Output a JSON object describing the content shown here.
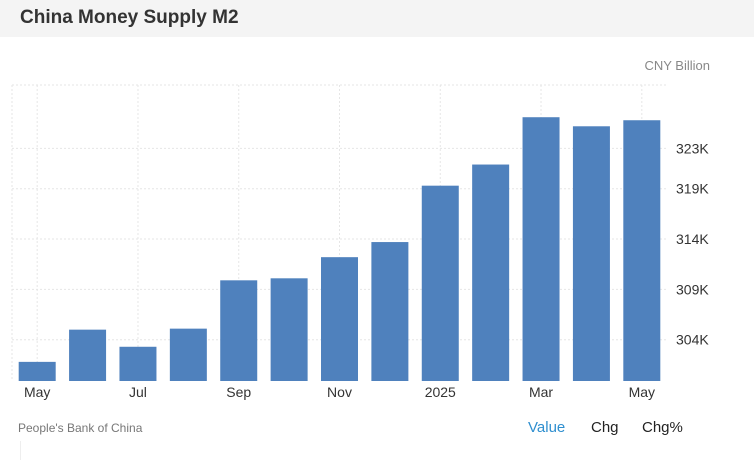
{
  "title": "China Money Supply M2",
  "unit_label": "CNY Billion",
  "source": "People's Bank of China",
  "tabs": [
    {
      "label": "Value",
      "active": true
    },
    {
      "label": "Chg",
      "active": false
    },
    {
      "label": "Chg%",
      "active": false
    }
  ],
  "colors": {
    "bar": "#4f81bd",
    "accent": "#2f8fcf"
  },
  "chart_data": {
    "type": "bar",
    "categories": [
      "May 2024",
      "Jun 2024",
      "Jul 2024",
      "Aug 2024",
      "Sep 2024",
      "Oct 2024",
      "Nov 2024",
      "Dec 2024",
      "Jan 2025",
      "Feb 2025",
      "Mar 2025",
      "Apr 2025",
      "May 2025"
    ],
    "x_tick_labels": [
      "May",
      "",
      "Jul",
      "",
      "Sep",
      "",
      "Nov",
      "",
      "2025",
      "",
      "Mar",
      "",
      "May"
    ],
    "values": [
      301.8,
      305.0,
      303.3,
      305.1,
      309.9,
      310.1,
      312.2,
      313.7,
      319.3,
      321.4,
      326.1,
      325.2,
      325.8
    ],
    "y_ticks": [
      304,
      309,
      314,
      319,
      323
    ],
    "y_tick_labels": [
      "304K",
      "309K",
      "314K",
      "319K",
      "323K"
    ],
    "ylim": [
      299.9,
      329.3
    ],
    "grid": true,
    "ylabel": "CNY Billion"
  }
}
